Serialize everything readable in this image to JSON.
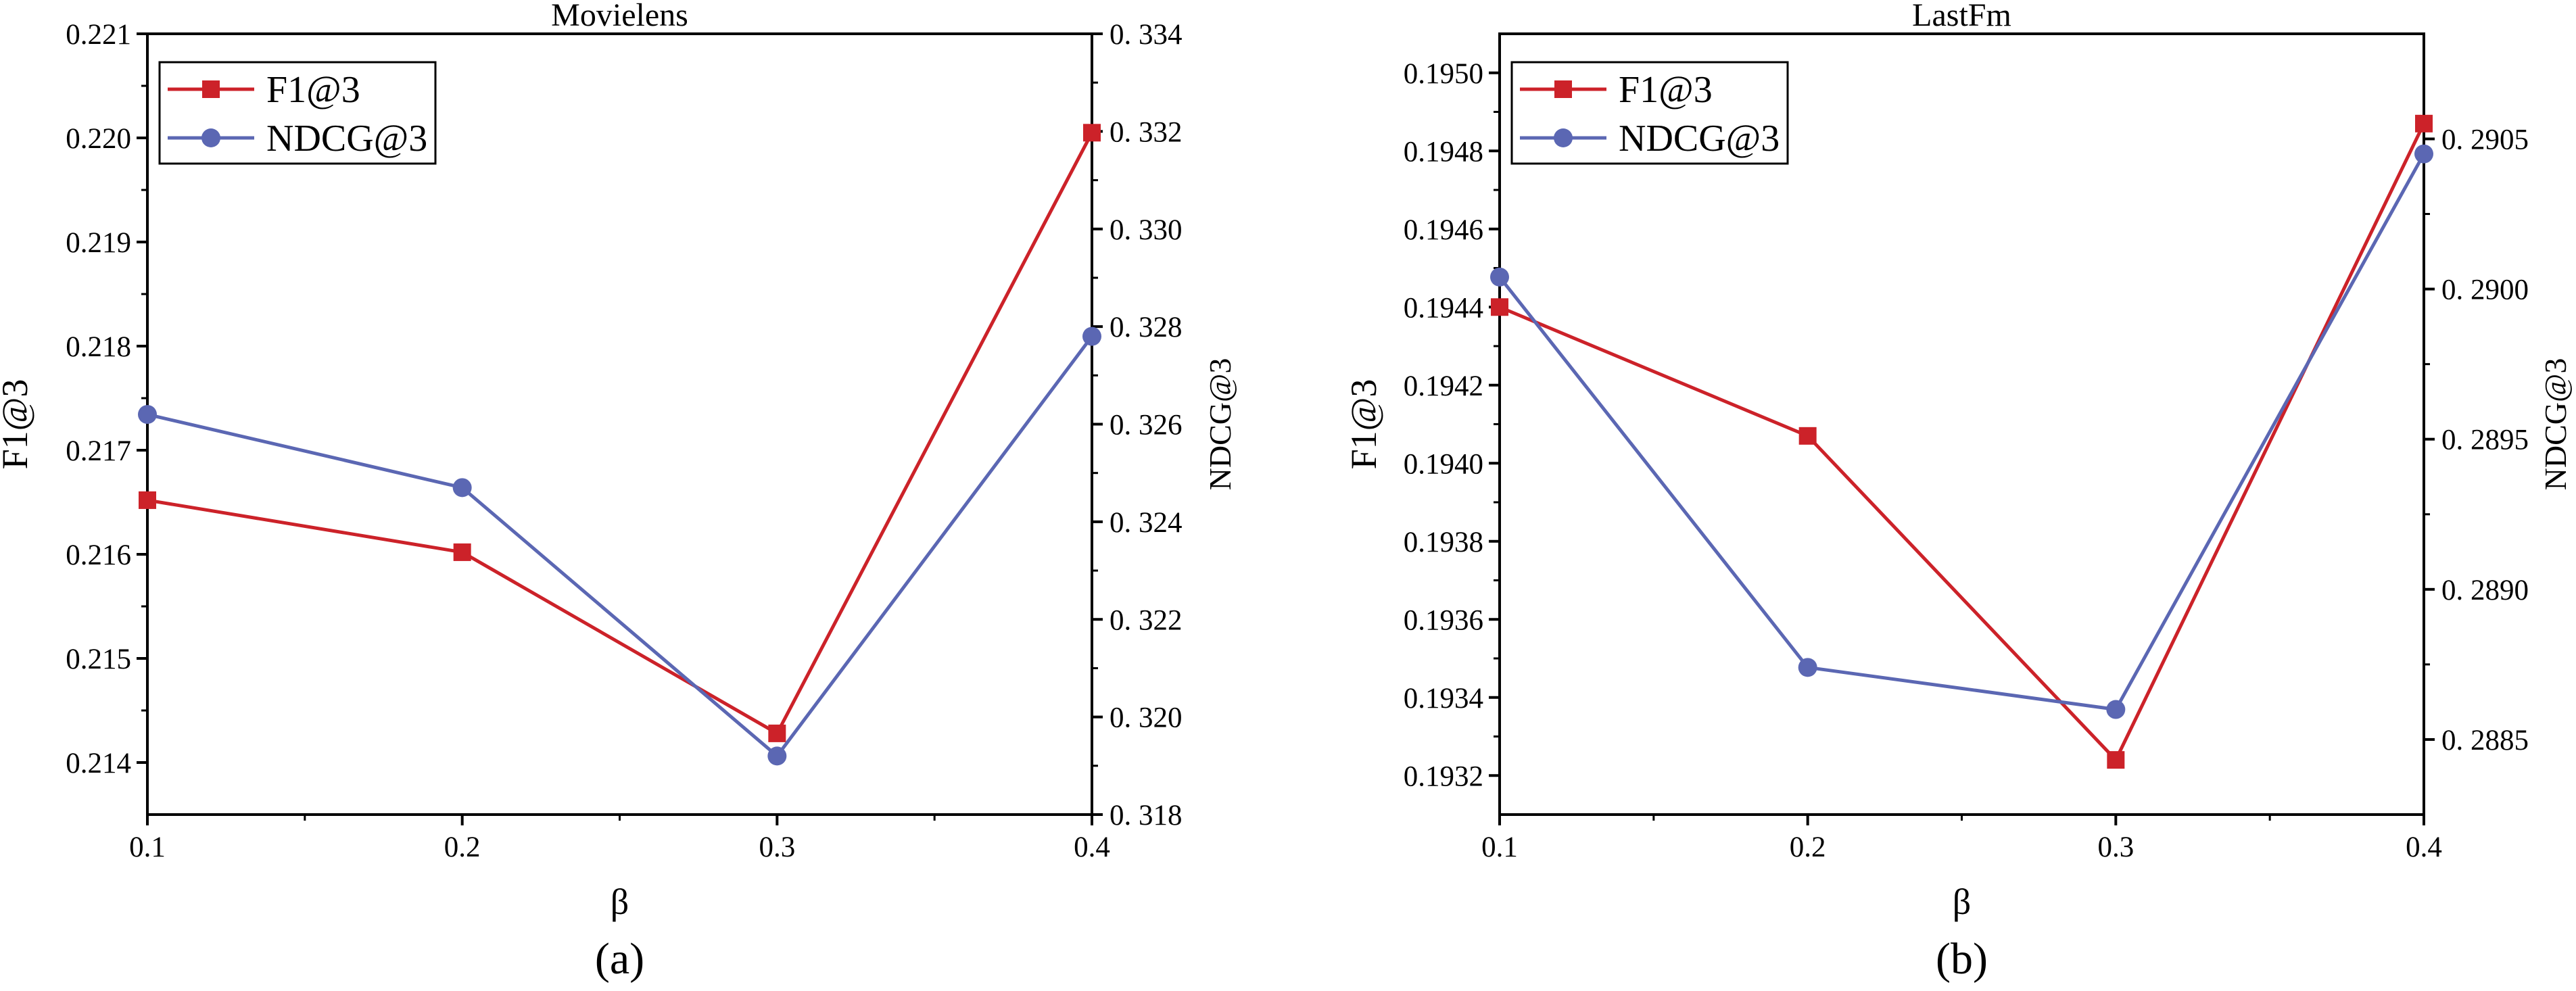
{
  "colors": {
    "f1": "#cc2229",
    "ndcg": "#5b67b3",
    "axis": "#000000"
  },
  "chart_data": [
    {
      "type": "line",
      "title": "Movielens",
      "caption": "(a)",
      "xlabel": "β",
      "ylabel": "F1@3",
      "ylabel_right": "NDCG@3",
      "x": [
        0.1,
        0.2,
        0.3,
        0.4
      ],
      "x_ticks": [
        "0.1",
        "0.2",
        "0.3",
        "0.4"
      ],
      "xlim": [
        0.1,
        0.4
      ],
      "ylim": [
        0.2135,
        0.221
      ],
      "y_ticks": [
        "0.214",
        "0.215",
        "0.216",
        "0.217",
        "0.218",
        "0.219",
        "0.220",
        "0.221"
      ],
      "y_tick_values": [
        0.214,
        0.215,
        0.216,
        0.217,
        0.218,
        0.219,
        0.22,
        0.221
      ],
      "ylim_right": [
        0.318,
        0.334
      ],
      "y_right_ticks": [
        "0. 318",
        "0. 320",
        "0. 322",
        "0. 324",
        "0. 326",
        "0. 328",
        "0. 330",
        "0. 332",
        "0. 334"
      ],
      "y_right_tick_values": [
        0.318,
        0.32,
        0.322,
        0.324,
        0.326,
        0.328,
        0.33,
        0.332,
        0.334
      ],
      "legend": [
        "F1@3",
        "NDCG@3"
      ],
      "legend_position": "top-left",
      "series": [
        {
          "name": "F1@3",
          "axis": "left",
          "marker": "square",
          "values": [
            0.21652,
            0.21602,
            0.21428,
            0.22005
          ]
        },
        {
          "name": "NDCG@3",
          "axis": "right",
          "marker": "circle",
          "values": [
            0.3262,
            0.3247,
            0.3192,
            0.3278
          ]
        }
      ]
    },
    {
      "type": "line",
      "title": "LastFm",
      "caption": "(b)",
      "xlabel": "β",
      "ylabel": "F1@3",
      "ylabel_right": "NDCG@3",
      "x": [
        0.1,
        0.2,
        0.3,
        0.4
      ],
      "x_ticks": [
        "0.1",
        "0.2",
        "0.3",
        "0.4"
      ],
      "xlim": [
        0.1,
        0.4
      ],
      "ylim": [
        0.1931,
        0.1951
      ],
      "y_ticks": [
        "0.1932",
        "0.1934",
        "0.1936",
        "0.1938",
        "0.1940",
        "0.1942",
        "0.1944",
        "0.1946",
        "0.1948",
        "0.1950"
      ],
      "y_tick_values": [
        0.1932,
        0.1934,
        0.1936,
        0.1938,
        0.194,
        0.1942,
        0.1944,
        0.1946,
        0.1948,
        0.195
      ],
      "ylim_right": [
        0.28825,
        0.29085
      ],
      "y_right_ticks": [
        "0. 2885",
        "0. 2890",
        "0. 2895",
        "0. 2900",
        "0. 2905"
      ],
      "y_right_tick_values": [
        0.2885,
        0.289,
        0.2895,
        0.29,
        0.2905
      ],
      "legend": [
        "F1@3",
        "NDCG@3"
      ],
      "legend_position": "top-left",
      "series": [
        {
          "name": "F1@3",
          "axis": "left",
          "marker": "square",
          "values": [
            0.1944,
            0.19407,
            0.19324,
            0.19487
          ]
        },
        {
          "name": "NDCG@3",
          "axis": "right",
          "marker": "circle",
          "values": [
            0.29004,
            0.28874,
            0.2886,
            0.29045
          ]
        }
      ]
    }
  ]
}
